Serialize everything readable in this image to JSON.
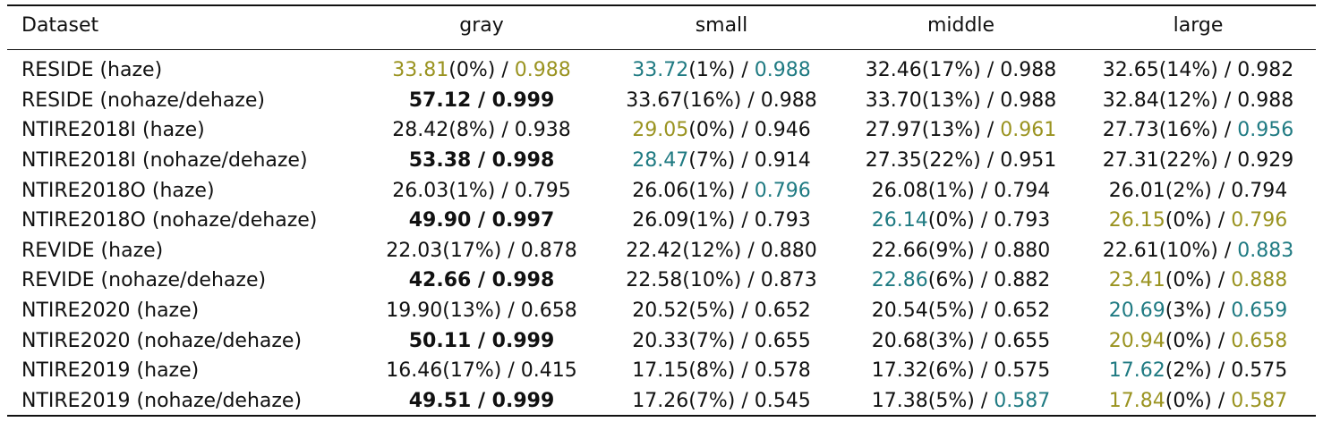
{
  "table": {
    "headers": [
      "Dataset",
      "gray",
      "small",
      "middle",
      "large"
    ],
    "colors": {
      "gold": "#9a9320",
      "teal": "#1f7a82"
    },
    "rows": [
      {
        "dataset": "RESIDE (haze)",
        "cells": [
          {
            "psnr": "33.81",
            "pct": "(0%)",
            "ssim": "0.988",
            "psnr_color": "gold",
            "ssim_color": "gold"
          },
          {
            "psnr": "33.72",
            "pct": "(1%)",
            "ssim": "0.988",
            "psnr_color": "teal",
            "ssim_color": "teal"
          },
          {
            "psnr": "32.46",
            "pct": "(17%)",
            "ssim": "0.988"
          },
          {
            "psnr": "32.65",
            "pct": "(14%)",
            "ssim": "0.982"
          }
        ]
      },
      {
        "dataset": "RESIDE (nohaze/dehaze)",
        "cells": [
          {
            "psnr": "57.12",
            "pct": "",
            "ssim": "0.999",
            "bold": true
          },
          {
            "psnr": "33.67",
            "pct": "(16%)",
            "ssim": "0.988"
          },
          {
            "psnr": "33.70",
            "pct": "(13%)",
            "ssim": "0.988"
          },
          {
            "psnr": "32.84",
            "pct": "(12%)",
            "ssim": "0.988"
          }
        ]
      },
      {
        "dataset": "NTIRE2018I (haze)",
        "cells": [
          {
            "psnr": "28.42",
            "pct": "(8%)",
            "ssim": "0.938"
          },
          {
            "psnr": "29.05",
            "pct": "(0%)",
            "ssim": "0.946",
            "psnr_color": "gold"
          },
          {
            "psnr": "27.97",
            "pct": "(13%)",
            "ssim": "0.961",
            "ssim_color": "gold"
          },
          {
            "psnr": "27.73",
            "pct": "(16%)",
            "ssim": "0.956",
            "ssim_color": "teal"
          }
        ]
      },
      {
        "dataset": "NTIRE2018I (nohaze/dehaze)",
        "cells": [
          {
            "psnr": "53.38",
            "pct": "",
            "ssim": "0.998",
            "bold": true
          },
          {
            "psnr": "28.47",
            "pct": "(7%)",
            "ssim": "0.914",
            "psnr_color": "teal"
          },
          {
            "psnr": "27.35",
            "pct": "(22%)",
            "ssim": "0.951"
          },
          {
            "psnr": "27.31",
            "pct": "(22%)",
            "ssim": "0.929"
          }
        ]
      },
      {
        "dataset": "NTIRE2018O (haze)",
        "cells": [
          {
            "psnr": "26.03",
            "pct": "(1%)",
            "ssim": "0.795"
          },
          {
            "psnr": "26.06",
            "pct": "(1%)",
            "ssim": "0.796",
            "ssim_color": "teal"
          },
          {
            "psnr": "26.08",
            "pct": "(1%)",
            "ssim": "0.794"
          },
          {
            "psnr": "26.01",
            "pct": "(2%)",
            "ssim": "0.794"
          }
        ]
      },
      {
        "dataset": "NTIRE2018O (nohaze/dehaze)",
        "cells": [
          {
            "psnr": "49.90",
            "pct": "",
            "ssim": "0.997",
            "bold": true
          },
          {
            "psnr": "26.09",
            "pct": "(1%)",
            "ssim": "0.793"
          },
          {
            "psnr": "26.14",
            "pct": "(0%)",
            "ssim": "0.793",
            "psnr_color": "teal"
          },
          {
            "psnr": "26.15",
            "pct": "(0%)",
            "ssim": "0.796",
            "psnr_color": "gold",
            "ssim_color": "gold"
          }
        ]
      },
      {
        "dataset": "REVIDE (haze)",
        "cells": [
          {
            "psnr": "22.03",
            "pct": "(17%)",
            "ssim": "0.878"
          },
          {
            "psnr": "22.42",
            "pct": "(12%)",
            "ssim": "0.880"
          },
          {
            "psnr": "22.66",
            "pct": "(9%)",
            "ssim": "0.880"
          },
          {
            "psnr": "22.61",
            "pct": "(10%)",
            "ssim": "0.883",
            "ssim_color": "teal"
          }
        ]
      },
      {
        "dataset": "REVIDE (nohaze/dehaze)",
        "cells": [
          {
            "psnr": "42.66",
            "pct": "",
            "ssim": "0.998",
            "bold": true
          },
          {
            "psnr": "22.58",
            "pct": "(10%)",
            "ssim": "0.873"
          },
          {
            "psnr": "22.86",
            "pct": "(6%)",
            "ssim": "0.882",
            "psnr_color": "teal"
          },
          {
            "psnr": "23.41",
            "pct": "(0%)",
            "ssim": "0.888",
            "psnr_color": "gold",
            "ssim_color": "gold"
          }
        ]
      },
      {
        "dataset": "NTIRE2020 (haze)",
        "cells": [
          {
            "psnr": "19.90",
            "pct": "(13%)",
            "ssim": "0.658"
          },
          {
            "psnr": "20.52",
            "pct": "(5%)",
            "ssim": "0.652"
          },
          {
            "psnr": "20.54",
            "pct": "(5%)",
            "ssim": "0.652"
          },
          {
            "psnr": "20.69",
            "pct": "(3%)",
            "ssim": "0.659",
            "psnr_color": "teal",
            "ssim_color": "teal"
          }
        ]
      },
      {
        "dataset": "NTIRE2020 (nohaze/dehaze)",
        "cells": [
          {
            "psnr": "50.11",
            "pct": "",
            "ssim": "0.999",
            "bold": true
          },
          {
            "psnr": "20.33",
            "pct": "(7%)",
            "ssim": "0.655"
          },
          {
            "psnr": "20.68",
            "pct": "(3%)",
            "ssim": "0.655"
          },
          {
            "psnr": "20.94",
            "pct": "(0%)",
            "ssim": "0.658",
            "psnr_color": "gold",
            "ssim_color": "gold"
          }
        ]
      },
      {
        "dataset": "NTIRE2019 (haze)",
        "cells": [
          {
            "psnr": "16.46",
            "pct": "(17%)",
            "ssim": "0.415"
          },
          {
            "psnr": "17.15",
            "pct": "(8%)",
            "ssim": "0.578"
          },
          {
            "psnr": "17.32",
            "pct": "(6%)",
            "ssim": "0.575"
          },
          {
            "psnr": "17.62",
            "pct": "(2%)",
            "ssim": "0.575",
            "psnr_color": "teal"
          }
        ]
      },
      {
        "dataset": "NTIRE2019 (nohaze/dehaze)",
        "cells": [
          {
            "psnr": "49.51",
            "pct": "",
            "ssim": "0.999",
            "bold": true
          },
          {
            "psnr": "17.26",
            "pct": "(7%)",
            "ssim": "0.545"
          },
          {
            "psnr": "17.38",
            "pct": "(5%)",
            "ssim": "0.587",
            "ssim_color": "teal"
          },
          {
            "psnr": "17.84",
            "pct": "(0%)",
            "ssim": "0.587",
            "psnr_color": "gold",
            "ssim_color": "gold"
          }
        ]
      }
    ]
  }
}
